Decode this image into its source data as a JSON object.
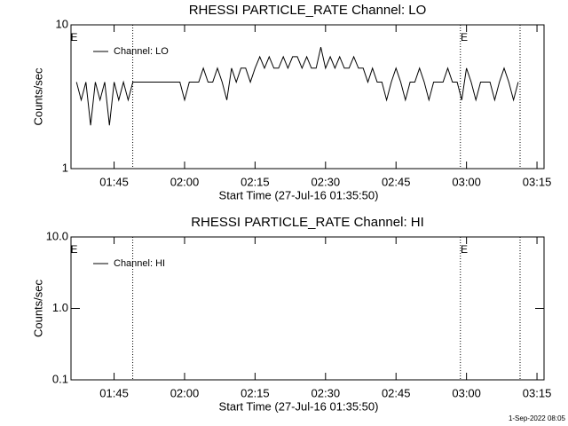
{
  "chart_data": [
    {
      "type": "line",
      "title": "RHESSI PARTICLE_RATE Channel: LO",
      "xlabel": "Start Time (27-Jul-16 01:35:50)",
      "ylabel": "Counts/sec",
      "log_y": true,
      "legend": "upper left",
      "xlim": [
        95.83,
        196.5
      ],
      "xticks": [
        {
          "value": 105,
          "label": "01:45"
        },
        {
          "value": 120,
          "label": "02:00"
        },
        {
          "value": 135,
          "label": "02:15"
        },
        {
          "value": 150,
          "label": "02:30"
        },
        {
          "value": 165,
          "label": "02:45"
        },
        {
          "value": 180,
          "label": "03:00"
        },
        {
          "value": 195,
          "label": "03:15"
        }
      ],
      "ylim": [
        1,
        10
      ],
      "yticks": [
        1,
        10
      ],
      "vlines": [
        108.97,
        178.7,
        191.4
      ],
      "annotations": [
        {
          "text": "E",
          "x": 96.5
        },
        {
          "text": "E",
          "x": 179.5
        }
      ],
      "series": [
        {
          "name": "Channel: LO",
          "color": "#000000",
          "x": [
            97,
            98,
            99,
            100,
            101,
            102,
            103,
            104,
            105,
            106,
            107,
            108,
            109,
            110,
            111,
            112,
            113,
            114,
            115,
            116,
            117,
            118,
            119,
            120,
            121,
            122,
            123,
            124,
            125,
            126,
            127,
            128,
            129,
            130,
            131,
            132,
            133,
            134,
            135,
            136,
            137,
            138,
            139,
            140,
            141,
            142,
            143,
            144,
            145,
            146,
            147,
            148,
            149,
            150,
            151,
            152,
            153,
            154,
            155,
            156,
            157,
            158,
            159,
            160,
            161,
            162,
            163,
            164,
            165,
            166,
            167,
            168,
            169,
            170,
            171,
            172,
            173,
            174,
            175,
            176,
            177,
            178,
            179,
            180,
            181,
            182,
            183,
            184,
            185,
            186,
            187,
            188,
            189,
            190,
            191
          ],
          "values": [
            4,
            3,
            4,
            2,
            4,
            3,
            4,
            2,
            4,
            3,
            4,
            3,
            4,
            4,
            4,
            4,
            4,
            4,
            4,
            4,
            4,
            4,
            4,
            3,
            4,
            4,
            4,
            5,
            4,
            4,
            5,
            4,
            3,
            5,
            4,
            5,
            5,
            4,
            5,
            6,
            5,
            6,
            5,
            5,
            6,
            5,
            6,
            6,
            5,
            6,
            5,
            5,
            7,
            5,
            6,
            5,
            6,
            5,
            5,
            6,
            5,
            5,
            4,
            5,
            4,
            4,
            3,
            4,
            5,
            4,
            3,
            4,
            4,
            5,
            4,
            3,
            4,
            4,
            4,
            5,
            4,
            4,
            3,
            5,
            4,
            3,
            4,
            4,
            4,
            3,
            4,
            5,
            4,
            3,
            4
          ]
        }
      ]
    },
    {
      "type": "line",
      "title": "RHESSI PARTICLE_RATE Channel: HI",
      "xlabel": "Start Time (27-Jul-16 01:35:50)",
      "ylabel": "Counts/sec",
      "log_y": true,
      "legend": "upper left",
      "xlim": [
        95.83,
        196.5
      ],
      "xticks": [
        {
          "value": 105,
          "label": "01:45"
        },
        {
          "value": 120,
          "label": "02:00"
        },
        {
          "value": 135,
          "label": "02:15"
        },
        {
          "value": 150,
          "label": "02:30"
        },
        {
          "value": 165,
          "label": "02:45"
        },
        {
          "value": 180,
          "label": "03:00"
        },
        {
          "value": 195,
          "label": "03:15"
        }
      ],
      "ylim": [
        0.1,
        10
      ],
      "yticks": [
        0.1,
        {
          "value": 1,
          "label": "1.0"
        },
        {
          "value": 10,
          "label": "10.0"
        }
      ],
      "vlines": [
        108.97,
        178.7,
        191.4
      ],
      "annotations": [
        {
          "text": "E",
          "x": 96.5
        },
        {
          "text": "E",
          "x": 179.5
        }
      ],
      "series": [
        {
          "name": "Channel: HI",
          "color": "#000000",
          "x": [],
          "values": []
        }
      ]
    }
  ],
  "footer": "1-Sep-2022 08:05"
}
